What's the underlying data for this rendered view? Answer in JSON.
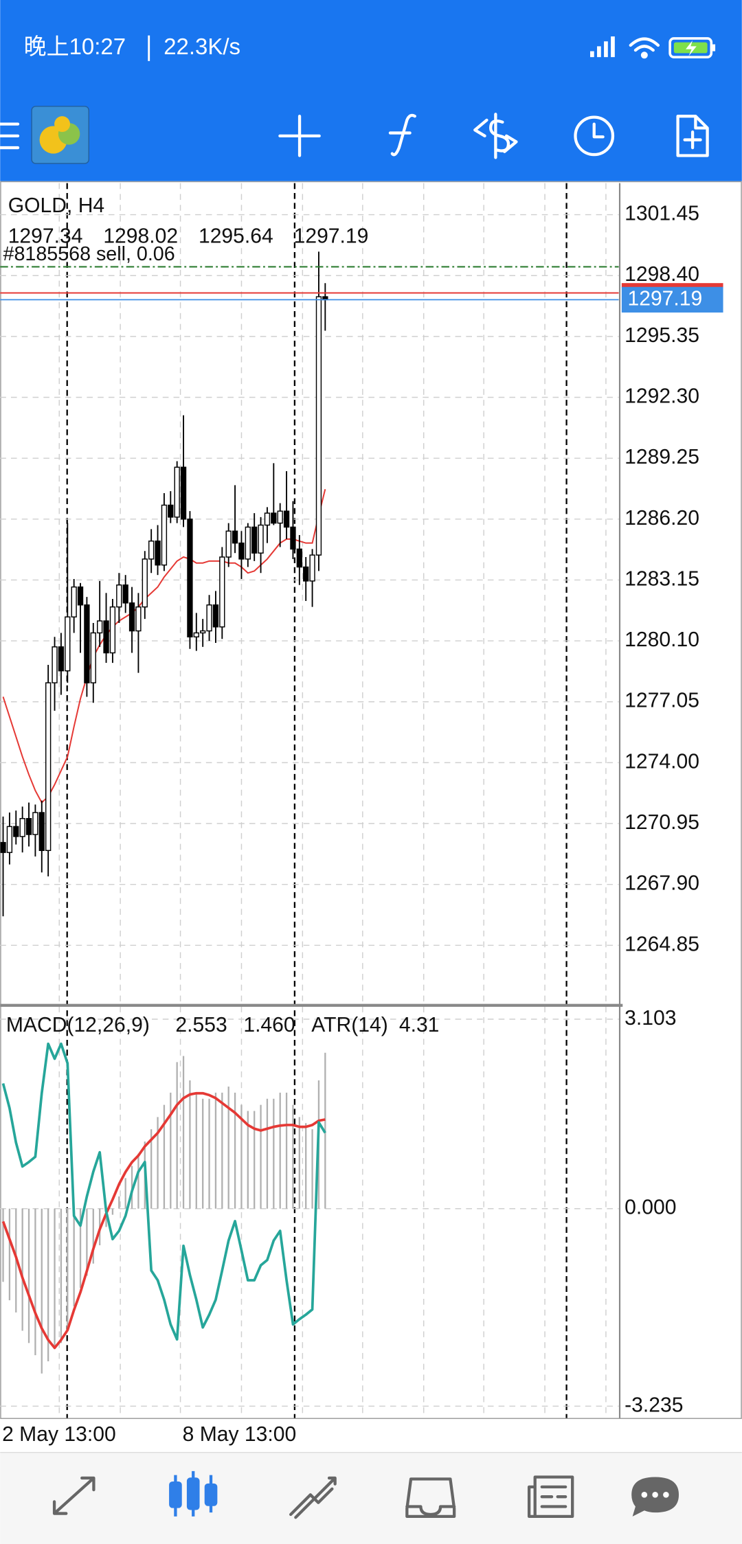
{
  "status_bar": {
    "time": "晚上10:27",
    "speed": "22.3K/s"
  },
  "chart_data": [
    {
      "type": "candlestick",
      "title": "GOLD, H4",
      "categories": [
        "2 May 13:00",
        null,
        null,
        null,
        null,
        null,
        null,
        null,
        null,
        null,
        null,
        null,
        null,
        null,
        null,
        null,
        null,
        null,
        null,
        null,
        null,
        null,
        null,
        null,
        null,
        null,
        null,
        null,
        "8 May 13:00",
        null,
        null,
        null,
        null,
        null,
        null,
        null,
        null,
        null,
        null,
        null,
        null,
        null,
        null,
        null,
        null,
        null,
        null,
        null,
        null,
        null,
        null
      ],
      "open": [
        1270.0,
        1269.5,
        1270.8,
        1270.3,
        1271.2,
        1270.4,
        1271.5,
        1269.6,
        1278.0,
        1279.8,
        1278.6,
        1281.3,
        1282.8,
        1281.9,
        1278.0,
        1280.5,
        1281.1,
        1279.5,
        1281.8,
        1282.9,
        1282.0,
        1280.6,
        1281.8,
        1284.2,
        1285.1,
        1283.9,
        1286.9,
        1286.3,
        1288.8,
        1286.2,
        1280.3,
        1280.5,
        1280.6,
        1281.9,
        1280.8,
        1284.3,
        1285.6,
        1285.0,
        1284.2,
        1285.8,
        1284.5,
        1285.9,
        1286.5,
        1286.0,
        1286.6,
        1285.8,
        1284.7,
        1283.8,
        1283.1,
        1284.4,
        1297.34
      ],
      "high": [
        1271.3,
        1271.5,
        1271.6,
        1271.8,
        1272.0,
        1271.9,
        1272.1,
        1278.9,
        1280.3,
        1280.5,
        1286.0,
        1283.2,
        1283.0,
        1282.3,
        1281.0,
        1283.1,
        1282.5,
        1282.2,
        1283.5,
        1283.4,
        1282.8,
        1282.5,
        1284.6,
        1285.7,
        1285.9,
        1287.5,
        1287.6,
        1289.1,
        1291.4,
        1286.6,
        1281.5,
        1281.2,
        1282.4,
        1282.6,
        1284.8,
        1286.0,
        1287.9,
        1285.6,
        1286.0,
        1286.5,
        1286.3,
        1286.8,
        1289.0,
        1287.0,
        1288.6,
        1287.1,
        1285.4,
        1284.3,
        1284.7,
        1299.6,
        1298.02
      ],
      "low": [
        1266.3,
        1268.9,
        1269.9,
        1269.5,
        1269.8,
        1269.3,
        1268.5,
        1268.3,
        1276.6,
        1277.4,
        1278.0,
        1280.5,
        1279.5,
        1277.3,
        1277.0,
        1279.8,
        1279.0,
        1279.0,
        1281.0,
        1281.5,
        1279.5,
        1278.5,
        1281.2,
        1283.5,
        1283.4,
        1283.6,
        1286.0,
        1286.0,
        1285.8,
        1279.7,
        1279.6,
        1279.8,
        1280.1,
        1280.0,
        1280.2,
        1283.8,
        1284.5,
        1283.2,
        1283.8,
        1284.1,
        1283.5,
        1285.0,
        1285.9,
        1284.8,
        1285.2,
        1284.2,
        1282.9,
        1282.1,
        1281.8,
        1283.6,
        1295.64
      ],
      "close": [
        1269.5,
        1270.8,
        1270.3,
        1271.2,
        1270.4,
        1271.5,
        1269.6,
        1278.0,
        1279.8,
        1278.6,
        1281.3,
        1282.8,
        1281.9,
        1278.0,
        1280.5,
        1281.1,
        1279.5,
        1281.8,
        1282.9,
        1282.0,
        1280.6,
        1281.8,
        1284.2,
        1285.1,
        1283.9,
        1286.9,
        1286.3,
        1288.8,
        1286.2,
        1280.3,
        1280.5,
        1280.6,
        1281.9,
        1280.8,
        1284.3,
        1285.6,
        1285.0,
        1284.2,
        1285.8,
        1284.5,
        1285.9,
        1286.5,
        1286.0,
        1286.6,
        1285.8,
        1284.7,
        1283.8,
        1283.1,
        1284.4,
        1297.34,
        1297.19
      ],
      "ma": {
        "color": "#e53935",
        "values": [
          1277.3,
          1276.3,
          1275.3,
          1274.3,
          1273.4,
          1272.6,
          1272.0,
          1272.3,
          1272.9,
          1273.6,
          1274.3,
          1275.8,
          1277.2,
          1278.3,
          1279.3,
          1279.9,
          1280.4,
          1280.8,
          1281.1,
          1281.3,
          1281.5,
          1281.8,
          1282.2,
          1282.5,
          1282.8,
          1283.3,
          1283.7,
          1284.1,
          1284.3,
          1284.2,
          1284.0,
          1284.0,
          1284.1,
          1284.1,
          1284.1,
          1284.0,
          1284.0,
          1283.8,
          1283.5,
          1283.6,
          1283.9,
          1284.2,
          1284.6,
          1285.0,
          1285.2,
          1285.2,
          1285.1,
          1285.0,
          1285.0,
          1286.4,
          1287.7
        ]
      },
      "order": {
        "label": "#8185568 sell, 0.06",
        "value": 1298.84,
        "color": "#2e7d32"
      },
      "ask": {
        "value": 1297.53,
        "color": "#e53935"
      },
      "bid_color": "#3d8fe6",
      "ylim": [
        1261.89,
        1303.03
      ],
      "yticks": [
        1301.45,
        {
          "value": 1298.4,
          "label": "1298.40"
        },
        1295.35,
        {
          "value": 1292.3,
          "label": "1292.30"
        },
        1289.25,
        {
          "value": 1286.2,
          "label": "1286.20"
        },
        1283.15,
        {
          "value": 1280.1,
          "label": "1280.10"
        },
        1277.05,
        {
          "value": 1274,
          "label": "1274.00"
        },
        1270.95,
        {
          "value": 1267.9,
          "label": "1267.90"
        },
        1264.85
      ],
      "grid": true
    },
    {
      "type": "macd",
      "label": "MACD(12,26,9)",
      "main_value": 2.553,
      "signal_value": {
        "value": 1.46,
        "label": "1.460"
      },
      "atr_label": "ATR(14)",
      "atr_value": 4.31,
      "ylim": [
        -3.428,
        3.313
      ],
      "yticks": [
        3.103,
        {
          "value": 0,
          "label": "0.000"
        },
        -3.235
      ],
      "y2lim": [
        0.5,
        6.0
      ],
      "grid": true,
      "series": [
        {
          "style": "histogram",
          "color": "#b0b0b0",
          "values": [
            -1.2,
            -1.5,
            -1.7,
            -2.0,
            -2.2,
            -2.4,
            -2.7,
            -2.5,
            -2.3,
            -2.2,
            -2.0,
            -1.6,
            -1.3,
            -1.1,
            -0.9,
            -0.6,
            -0.3,
            -0.1,
            0.2,
            0.5,
            0.7,
            0.9,
            1.1,
            1.3,
            1.5,
            1.7,
            1.9,
            2.4,
            2.5,
            2.1,
            1.9,
            1.8,
            1.8,
            1.9,
            1.9,
            2.0,
            1.9,
            1.7,
            1.6,
            1.6,
            1.7,
            1.8,
            1.8,
            1.9,
            1.9,
            1.7,
            1.5,
            1.4,
            1.3,
            2.1,
            2.553
          ]
        },
        {
          "style": "line",
          "color": "#e53935",
          "values": [
            -0.21,
            -0.5,
            -0.79,
            -1.13,
            -1.42,
            -1.71,
            -1.96,
            -2.15,
            -2.28,
            -2.15,
            -1.99,
            -1.66,
            -1.37,
            -1.02,
            -0.66,
            -0.34,
            -0.08,
            0.15,
            0.4,
            0.6,
            0.76,
            0.87,
            1.02,
            1.13,
            1.24,
            1.39,
            1.54,
            1.7,
            1.81,
            1.87,
            1.89,
            1.89,
            1.86,
            1.81,
            1.73,
            1.65,
            1.57,
            1.47,
            1.37,
            1.31,
            1.28,
            1.31,
            1.34,
            1.36,
            1.37,
            1.37,
            1.34,
            1.34,
            1.37,
            1.44,
            1.46
          ]
        },
        {
          "style": "line",
          "color": "#26a69a",
          "axis": "y2",
          "values": [
            4.97,
            4.64,
            4.18,
            3.86,
            3.92,
            3.99,
            4.84,
            5.5,
            5.3,
            5.5,
            5.24,
            3.2,
            3.07,
            3.46,
            3.79,
            4.05,
            3.26,
            2.89,
            3.0,
            3.2,
            3.53,
            3.79,
            3.92,
            2.47,
            2.34,
            2.08,
            1.75,
            1.55,
            2.8,
            2.41,
            2.08,
            1.71,
            1.88,
            2.08,
            2.47,
            2.87,
            3.13,
            2.74,
            2.34,
            2.34,
            2.54,
            2.61,
            2.87,
            3.0,
            2.34,
            1.75,
            1.82,
            1.88,
            1.95,
            4.45,
            4.31
          ]
        }
      ]
    }
  ]
}
